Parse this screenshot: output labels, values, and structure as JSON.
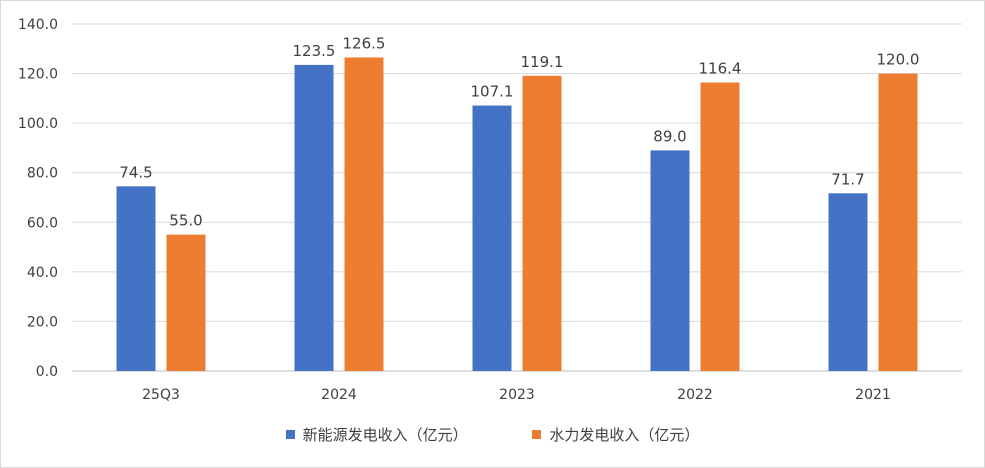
{
  "chart_data": {
    "type": "bar",
    "categories": [
      "25Q3",
      "2024",
      "2023",
      "2022",
      "2021"
    ],
    "series": [
      {
        "name": "新能源发电收入（亿元）",
        "values": [
          74.5,
          123.5,
          107.1,
          89.0,
          71.7
        ],
        "color": "#4472C4"
      },
      {
        "name": "水力发电收入（亿元）",
        "values": [
          55.0,
          126.5,
          119.1,
          116.4,
          120.0
        ],
        "color": "#ED7D31"
      }
    ],
    "ylim": [
      0,
      140
    ],
    "yticks": [
      "0.0",
      "20.0",
      "40.0",
      "60.0",
      "80.0",
      "100.0",
      "120.0",
      "140.0"
    ],
    "data_labels": [
      [
        "74.5",
        "123.5",
        "107.1",
        "89.0",
        "71.7"
      ],
      [
        "55.0",
        "126.5",
        "119.1",
        "116.4",
        "120.0"
      ]
    ],
    "grid": true,
    "legend_position": "bottom"
  }
}
